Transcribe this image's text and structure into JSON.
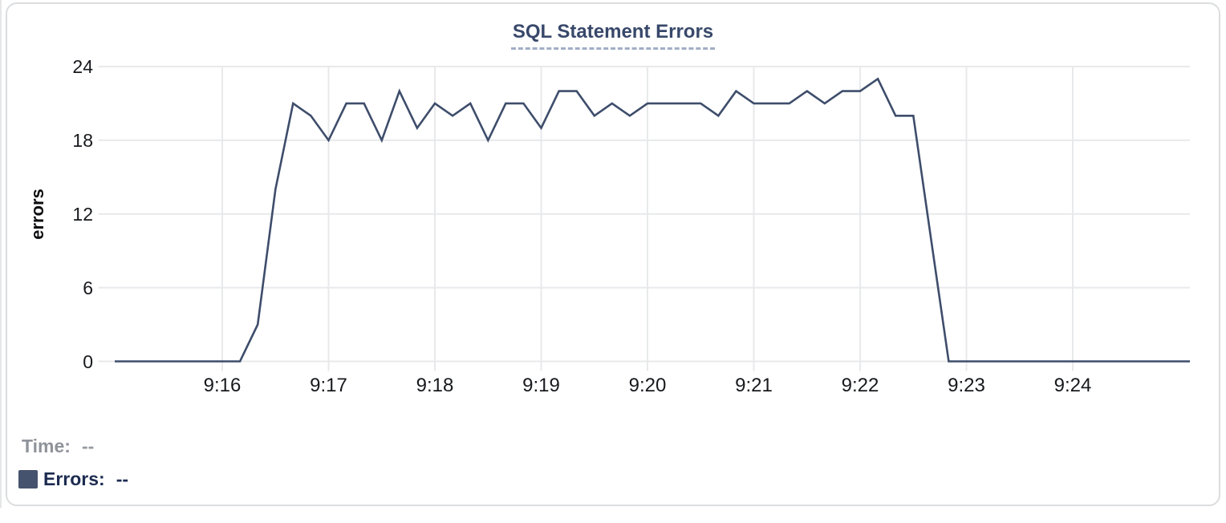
{
  "page": {
    "background": "#ffffff"
  },
  "card": {
    "border_color": "#dbdddf",
    "background": "#ffffff"
  },
  "colors": {
    "title": "#38486a",
    "title_dash_underline": "#a2aec5",
    "line": "#3e4d6b",
    "gridline": "#e8e9eb",
    "tick_label": "#17191d",
    "legend_time": "#8f939a",
    "legend_errors": "#1c2b50",
    "swatch": "#46536e"
  },
  "chart_data": {
    "type": "line",
    "title": "SQL Statement Errors",
    "xlabel": "",
    "ylabel": "errors",
    "x_ticks": [
      "9:16",
      "9:17",
      "9:18",
      "9:19",
      "9:20",
      "9:21",
      "9:22",
      "9:23",
      "9:24"
    ],
    "y_ticks": [
      0,
      6,
      12,
      18,
      24
    ],
    "ylim": [
      0,
      24
    ],
    "xlim": [
      "9:15:00",
      "9:25:06"
    ],
    "grid": true,
    "legend_position": "bottom-left",
    "series": [
      {
        "name": "Errors",
        "color": "#3e4d6b",
        "t": [
          "9:15:00",
          "9:15:10",
          "9:15:20",
          "9:15:30",
          "9:15:40",
          "9:15:50",
          "9:16:00",
          "9:16:10",
          "9:16:20",
          "9:16:30",
          "9:16:40",
          "9:16:50",
          "9:17:00",
          "9:17:10",
          "9:17:20",
          "9:17:30",
          "9:17:40",
          "9:17:50",
          "9:18:00",
          "9:18:10",
          "9:18:20",
          "9:18:30",
          "9:18:40",
          "9:18:50",
          "9:19:00",
          "9:19:10",
          "9:19:20",
          "9:19:30",
          "9:19:40",
          "9:19:50",
          "9:20:00",
          "9:20:10",
          "9:20:20",
          "9:20:30",
          "9:20:40",
          "9:20:50",
          "9:21:00",
          "9:21:10",
          "9:21:20",
          "9:21:30",
          "9:21:40",
          "9:21:50",
          "9:22:00",
          "9:22:10",
          "9:22:20",
          "9:22:30",
          "9:22:40",
          "9:22:50",
          "9:23:00",
          "9:23:10",
          "9:23:20",
          "9:23:30",
          "9:23:40",
          "9:23:50",
          "9:24:00",
          "9:24:10",
          "9:24:20",
          "9:24:30",
          "9:24:40",
          "9:24:50",
          "9:25:00"
        ],
        "v": [
          0,
          0,
          0,
          0,
          0,
          0,
          0,
          0,
          3,
          14,
          21,
          20,
          18,
          21,
          21,
          18,
          22,
          19,
          21,
          20,
          21,
          18,
          21,
          21,
          19,
          22,
          22,
          20,
          21,
          20,
          21,
          21,
          21,
          21,
          20,
          22,
          21,
          21,
          21,
          22,
          21,
          22,
          22,
          23,
          20,
          20,
          10,
          0,
          0,
          0,
          0,
          0,
          0,
          0,
          0,
          0,
          0,
          0,
          0,
          0,
          0
        ]
      }
    ]
  },
  "tooltip": {
    "time_label": "Time:",
    "time_value": "--",
    "errors_label": "Errors:",
    "errors_value": "--"
  }
}
